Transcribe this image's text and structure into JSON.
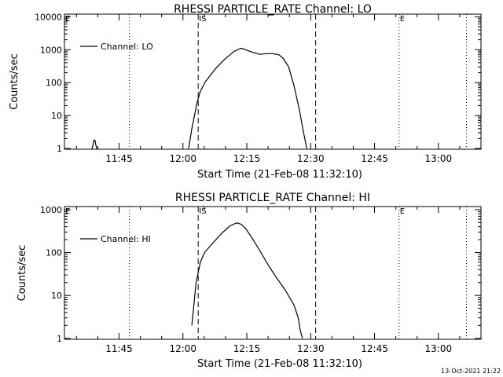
{
  "chart_data": [
    {
      "type": "line",
      "title": "RHESSI PARTICLE_RATE Channel: LO",
      "xlabel": "Start Time (21-Feb-08 11:32:10)",
      "ylabel": "Counts/sec",
      "yscale": "log",
      "ylim": [
        0.95,
        12000
      ],
      "xlim": [
        "11:32:10",
        "13:10:00"
      ],
      "x_ticks": [
        "11:45",
        "12:00",
        "12:15",
        "12:30",
        "12:45",
        "13:00"
      ],
      "y_ticks": [
        {
          "value": 1,
          "label": "1"
        },
        {
          "value": 10,
          "label": "10"
        },
        {
          "value": 100,
          "label": "100"
        },
        {
          "value": 1000,
          "label": "1000"
        },
        {
          "value": 10000,
          "label": "10000"
        }
      ],
      "legend": "Channel: LO",
      "legend_position": "top-left",
      "markers": [
        {
          "label": "E",
          "time": "11:32:10",
          "style": "none"
        },
        {
          "label": "",
          "time": "11:47:25",
          "style": "dotted"
        },
        {
          "label": "IS",
          "time": "12:03:35",
          "style": "dashed"
        },
        {
          "label": "",
          "time": "12:31:10",
          "style": "dashed"
        },
        {
          "label": "E",
          "time": "12:50:45",
          "style": "dotted"
        },
        {
          "label": "",
          "time": "13:06:35",
          "style": "dotted"
        }
      ],
      "series": [
        {
          "name": "Channel: LO",
          "segments": [
            {
              "x": [
                "11:38:35",
                "11:38:50",
                "11:39:05",
                "11:39:20",
                "11:39:35",
                "11:39:50"
              ],
              "y": [
                0.95,
                1.2,
                1.8,
                1.8,
                1.2,
                0.95
              ]
            },
            {
              "x": [
                "12:01:20",
                "12:02:05",
                "12:03:20",
                "12:04:05",
                "12:05:20",
                "12:07:35",
                "12:09:50",
                "12:12:05",
                "12:13:35",
                "12:14:20",
                "12:15:05",
                "12:16:35",
                "12:18:05",
                "12:19:35",
                "12:21:05",
                "12:22:35",
                "12:23:35",
                "12:24:50",
                "12:26:05",
                "12:27:20",
                "12:28:20",
                "12:29:05"
              ],
              "y": [
                1,
                4,
                25,
                55,
                110,
                260,
                520,
                900,
                1100,
                1050,
                950,
                820,
                720,
                760,
                760,
                700,
                540,
                300,
                80,
                15,
                3,
                1
              ]
            }
          ]
        }
      ]
    },
    {
      "type": "line",
      "title": "RHESSI PARTICLE_RATE Channel: HI",
      "xlabel": "Start Time (21-Feb-08 11:32:10)",
      "ylabel": "Counts/sec",
      "yscale": "log",
      "ylim": [
        0.95,
        1180
      ],
      "xlim": [
        "11:32:10",
        "13:10:00"
      ],
      "x_ticks": [
        "11:45",
        "12:00",
        "12:15",
        "12:30",
        "12:45",
        "13:00"
      ],
      "y_ticks": [
        {
          "value": 1,
          "label": "1"
        },
        {
          "value": 10,
          "label": "10"
        },
        {
          "value": 100,
          "label": "100"
        },
        {
          "value": 1000,
          "label": "1000"
        }
      ],
      "legend": "Channel: HI",
      "legend_position": "top-left",
      "markers": [
        {
          "label": "E",
          "time": "11:32:10",
          "style": "none"
        },
        {
          "label": "",
          "time": "11:47:25",
          "style": "dotted"
        },
        {
          "label": "IS",
          "time": "12:03:35",
          "style": "dashed"
        },
        {
          "label": "",
          "time": "12:31:10",
          "style": "dashed"
        },
        {
          "label": "E",
          "time": "12:50:45",
          "style": "dotted"
        },
        {
          "label": "",
          "time": "13:06:35",
          "style": "dotted"
        }
      ],
      "series": [
        {
          "name": "Channel: HI",
          "segments": [
            {
              "x": [
                "12:02:05",
                "12:03:05",
                "12:04:05",
                "12:05:05",
                "12:07:05",
                "12:09:05",
                "12:11:05",
                "12:12:35",
                "12:13:35",
                "12:14:35",
                "12:16:05",
                "12:18:05",
                "12:20:05",
                "12:22:05",
                "12:24:05",
                "12:26:05",
                "12:27:05",
                "12:27:35",
                "12:28:05"
              ],
              "y": [
                2,
                20,
                60,
                100,
                170,
                280,
                420,
                490,
                460,
                380,
                230,
                110,
                50,
                25,
                13,
                6,
                3,
                1.5,
                1
              ]
            }
          ]
        }
      ]
    }
  ],
  "footer": {
    "timestamp": "13-Oct-2021 21:22"
  }
}
